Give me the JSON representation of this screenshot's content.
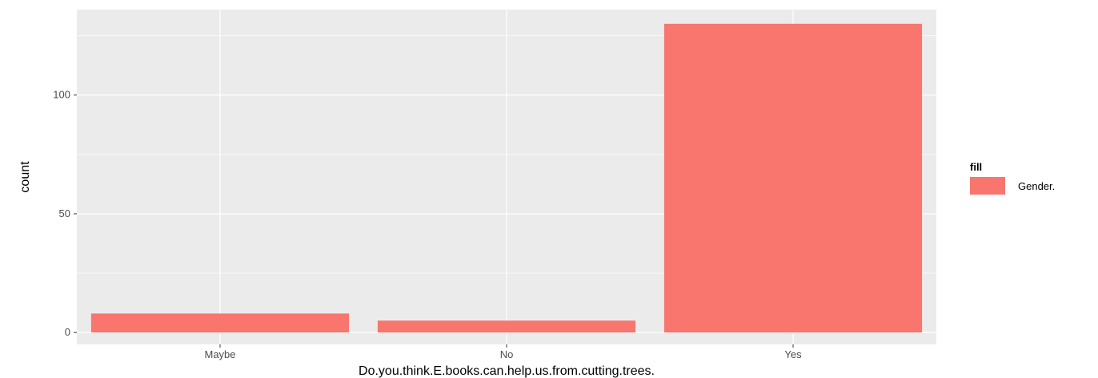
{
  "chart_data": {
    "type": "bar",
    "categories": [
      "Maybe",
      "No",
      "Yes"
    ],
    "values": [
      8,
      5,
      130
    ],
    "xlabel": "Do.you.think.E.books.can.help.us.from.cutting.trees.",
    "ylabel": "count",
    "ylim": [
      -5,
      136
    ],
    "y_ticks": [
      0,
      50,
      100
    ],
    "grid": true,
    "legend": {
      "title": "fill",
      "entries": [
        {
          "label": "Gender.",
          "color": "#F8766D"
        }
      ],
      "placement": "right"
    },
    "colors": {
      "bar": "#F8766D",
      "panel_background": "#EBEBEB",
      "grid": "#FFFFFF"
    }
  }
}
